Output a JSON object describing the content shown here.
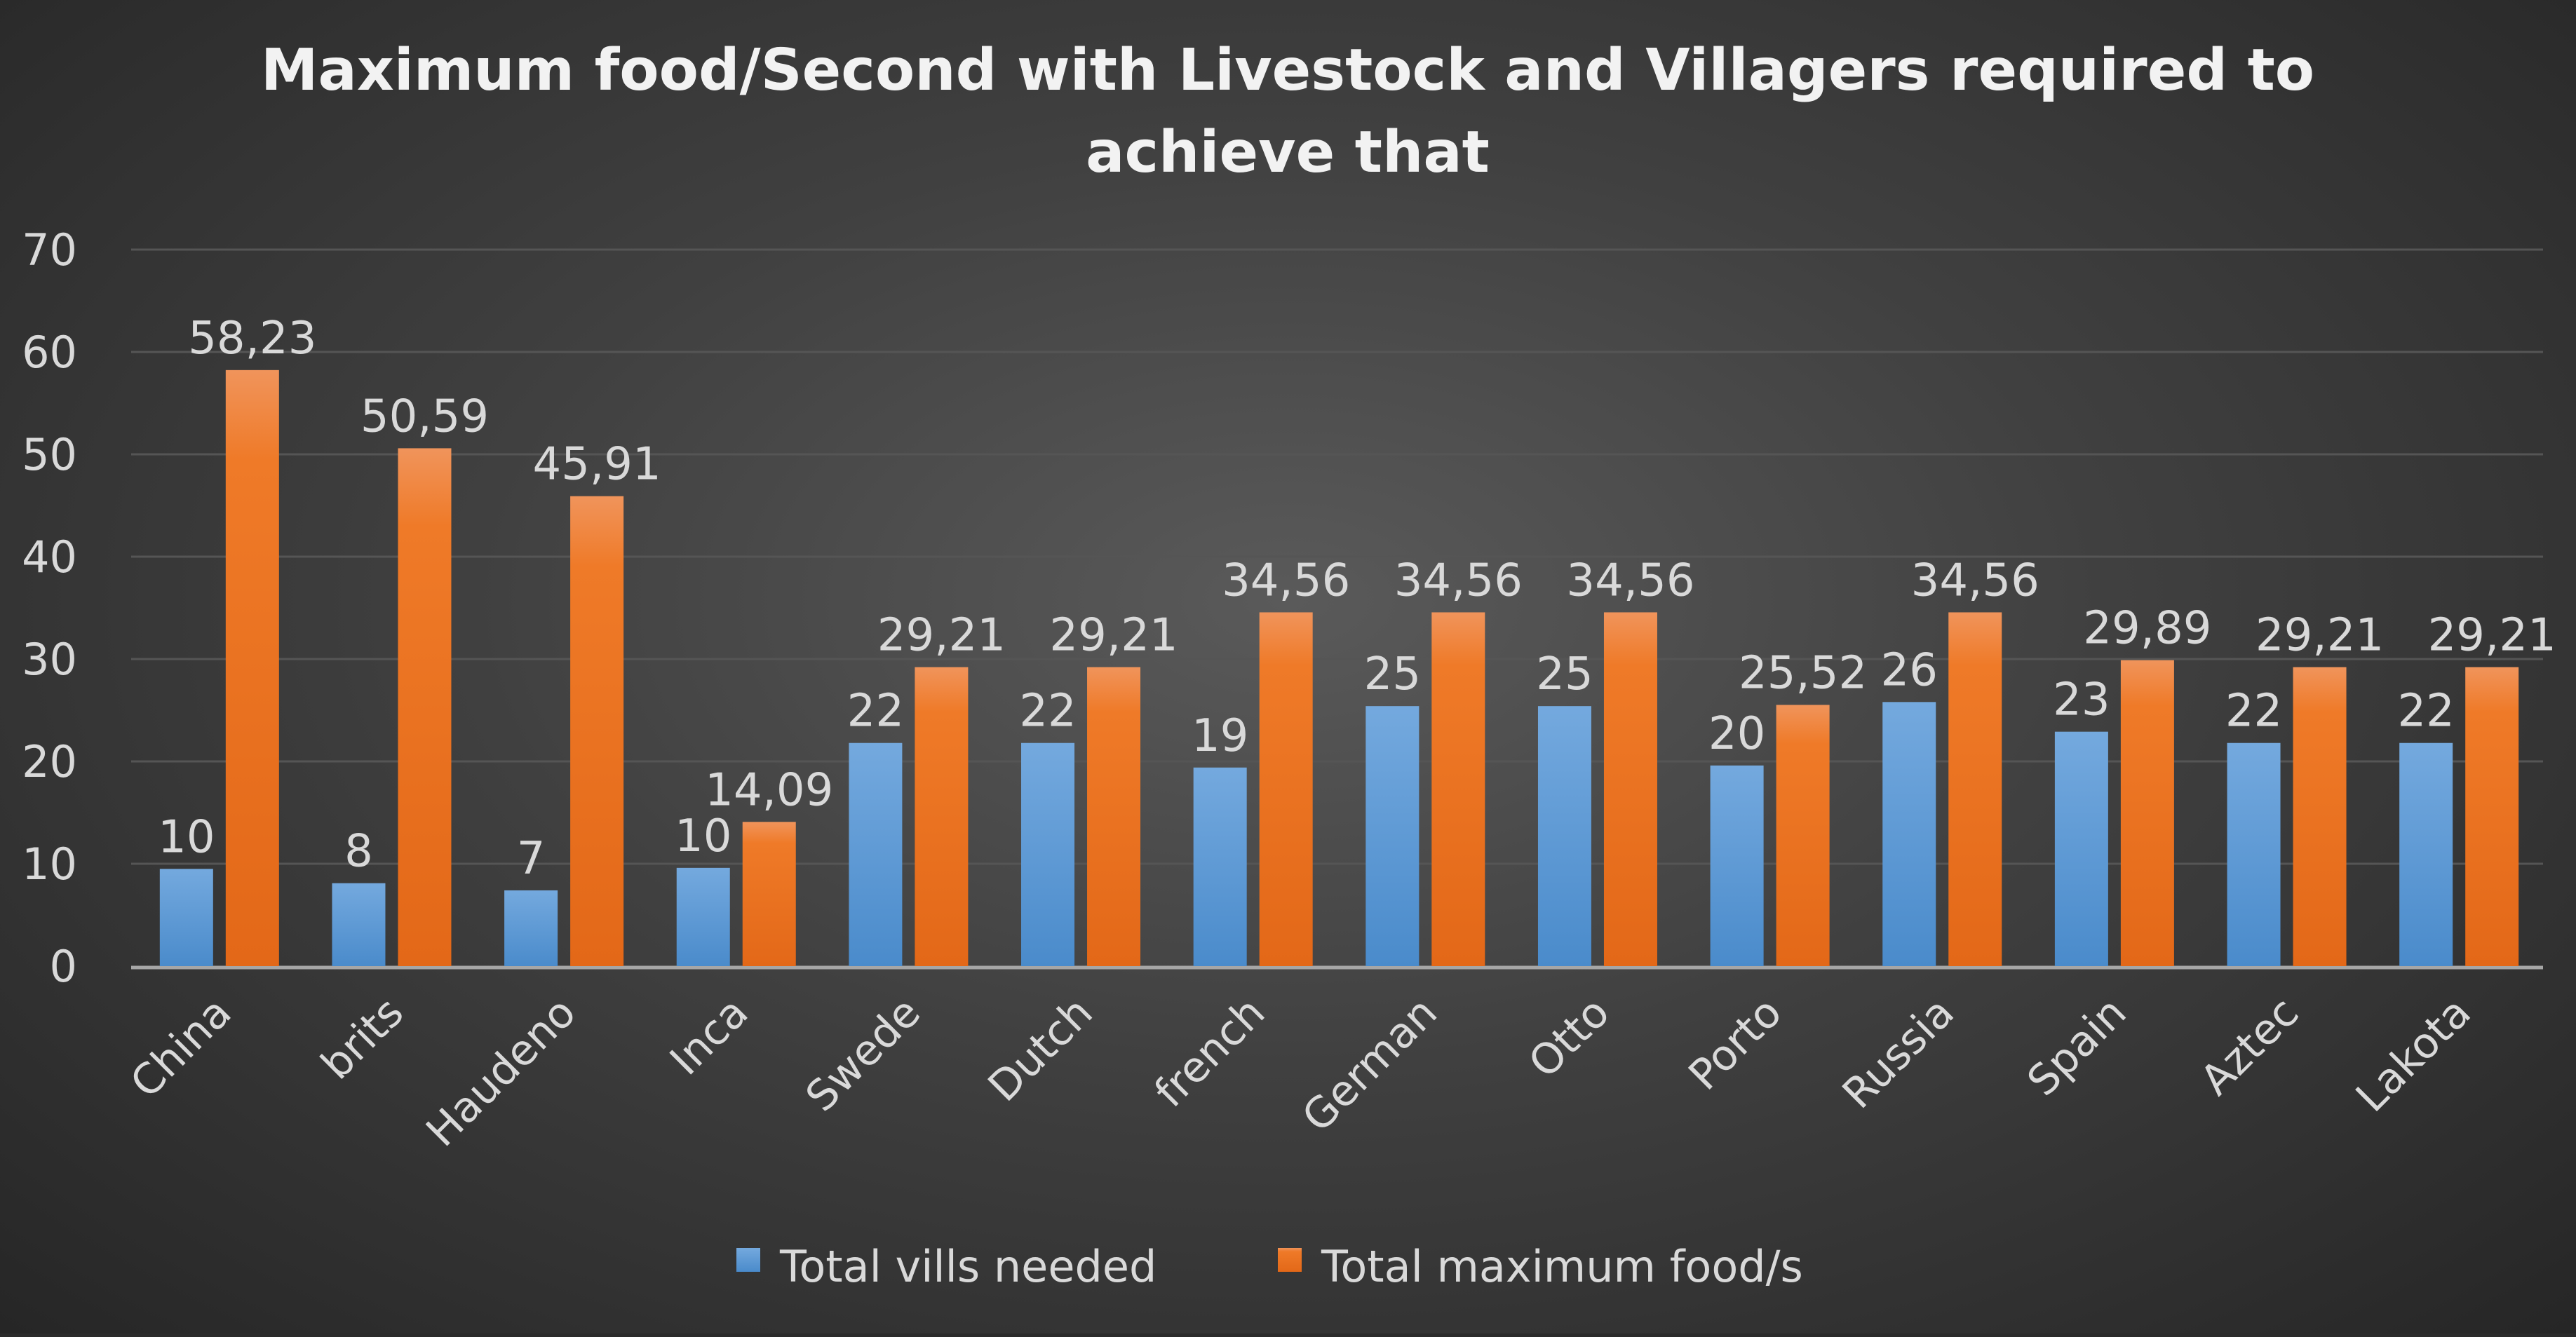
{
  "chart_data": {
    "type": "bar",
    "title": [
      "Maximum food/Second with Livestock and Villagers required to",
      "achieve that"
    ],
    "xlabel": "",
    "ylabel": "",
    "ylim": [
      0,
      70
    ],
    "yticks": [
      "0",
      "10",
      "20",
      "30",
      "40",
      "50",
      "60",
      "70"
    ],
    "grid": true,
    "legend_position": "bottom",
    "categories": [
      "China",
      "brits",
      "Haudeno",
      "Inca",
      "Swede",
      "Dutch",
      "french",
      "German",
      "Otto",
      "Porto",
      "Russia",
      "Spain",
      "Aztec",
      "Lakota"
    ],
    "series": [
      {
        "name": "Total vills needed",
        "color": "#5b9bd5",
        "values": [
          9.5,
          8.1,
          7.4,
          9.6,
          21.8,
          21.8,
          19.4,
          25.4,
          25.4,
          19.6,
          25.8,
          22.9,
          21.8,
          21.8
        ],
        "labels": [
          "10",
          "8",
          "7",
          "10",
          "22",
          "22",
          "19",
          "25",
          "25",
          "20",
          "26",
          "23",
          "22",
          "22"
        ]
      },
      {
        "name": "Total maximum food/s",
        "color": "#ed7d31",
        "values": [
          58.23,
          50.59,
          45.91,
          14.09,
          29.21,
          29.21,
          34.56,
          34.56,
          34.56,
          25.52,
          34.56,
          29.89,
          29.21,
          29.21
        ],
        "labels": [
          "58,23",
          "50,59",
          "45,91",
          "14,09",
          "29,21",
          "29,21",
          "34,56",
          "34,56",
          "34,56",
          "25,52",
          "34,56",
          "29,89",
          "29,21",
          "29,21"
        ]
      }
    ]
  }
}
